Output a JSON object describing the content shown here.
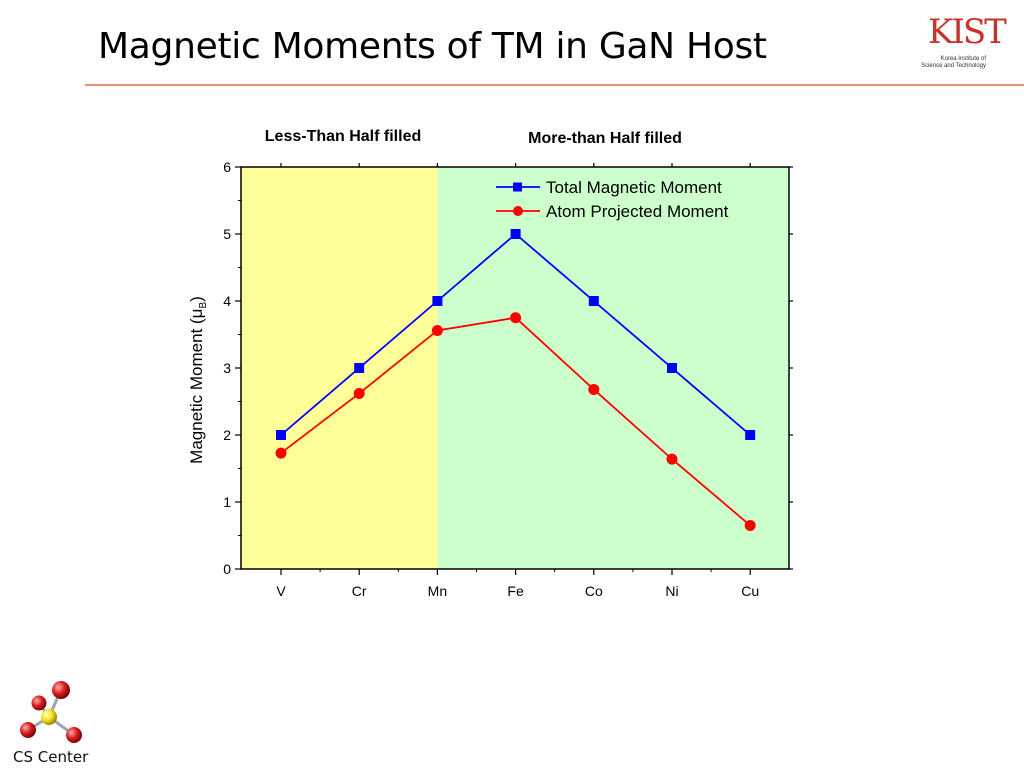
{
  "slide": {
    "title": "Magnetic Moments of TM in GaN Host"
  },
  "logo_kist": {
    "letters": "KIST",
    "subtitle_line1": "Korea Institute of",
    "subtitle_line2": "Science and Technology"
  },
  "logo_cs": {
    "label": "CS Center"
  },
  "colors": {
    "title_rule": "#e8917a",
    "region_less": "#ffff99",
    "region_more": "#ccffcc",
    "series_total": "#0000ff",
    "series_atom": "#ff0000",
    "kist_red": "#c8322a"
  },
  "chart_data": {
    "type": "line",
    "categories": [
      "V",
      "Cr",
      "Mn",
      "Fe",
      "Co",
      "Ni",
      "Cu"
    ],
    "ylabel_main": "Magnetic Moment (",
    "ylabel_mu": "μ",
    "ylabel_sub": "B",
    "ylabel_close": ")",
    "ylim": [
      0,
      6
    ],
    "yticks": [
      0,
      1,
      2,
      3,
      4,
      5,
      6
    ],
    "legend_position": "top-right",
    "grid": false,
    "regions": [
      {
        "label": "Less-Than Half filled",
        "from": "V",
        "to": "Mn",
        "color": "#ffff99"
      },
      {
        "label": "More-than Half filled",
        "from": "Mn",
        "to": "Cu",
        "color": "#ccffcc"
      }
    ],
    "series": [
      {
        "name": "Total Magnetic Moment",
        "marker": "square",
        "color": "#0000ff",
        "values": [
          2,
          3,
          4,
          5,
          4,
          3,
          2
        ]
      },
      {
        "name": "Atom Projected Moment",
        "marker": "circle",
        "color": "#ff0000",
        "values": [
          1.73,
          2.62,
          3.56,
          3.75,
          2.68,
          1.64,
          0.65
        ]
      }
    ]
  }
}
